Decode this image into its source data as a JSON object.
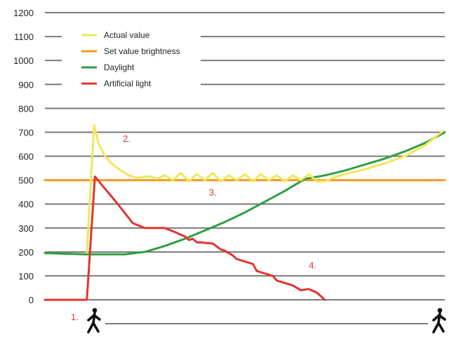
{
  "chart_data": {
    "type": "line",
    "ylim": [
      0,
      1200
    ],
    "y_ticks": [
      0,
      100,
      200,
      300,
      400,
      500,
      600,
      700,
      800,
      900,
      1000,
      1100,
      1200
    ],
    "y_tick_labels": [
      "0",
      "100",
      "200",
      "300",
      "400",
      "500",
      "600",
      "700",
      "800",
      "900",
      "1000",
      "1100",
      "1200"
    ],
    "xlim": [
      0,
      100
    ],
    "grid": true,
    "legend_position": "top-left",
    "series": [
      {
        "name": "Actual value",
        "color": "#f2e65a",
        "x": [
          10.5,
          12.3,
          13.5,
          15,
          17,
          19,
          21,
          23,
          25,
          26.5,
          28,
          30,
          32,
          34,
          36,
          38,
          40,
          42,
          44,
          46,
          48,
          50,
          52,
          54,
          56,
          58,
          60,
          62,
          64,
          66,
          68,
          70,
          72,
          75,
          80,
          85,
          90,
          95,
          99.5
        ],
        "y": [
          200,
          730,
          650,
          600,
          565,
          540,
          520,
          510,
          515,
          515,
          505,
          520,
          500,
          530,
          495,
          525,
          500,
          530,
          495,
          520,
          500,
          525,
          495,
          525,
          500,
          520,
          495,
          520,
          500,
          525,
          495,
          495,
          510,
          525,
          545,
          570,
          600,
          645,
          705
        ]
      },
      {
        "name": "Set value brightness",
        "color": "#f39c1f",
        "x": [
          0,
          100
        ],
        "y": [
          500,
          500
        ]
      },
      {
        "name": "Daylight",
        "color": "#2e9e44",
        "x": [
          0,
          10,
          20,
          25,
          30,
          35,
          40,
          45,
          50,
          55,
          60,
          65,
          70,
          75,
          80,
          85,
          90,
          95,
          100
        ],
        "y": [
          195,
          190,
          190,
          200,
          225,
          255,
          290,
          325,
          365,
          410,
          455,
          505,
          520,
          540,
          565,
          590,
          620,
          655,
          700
        ]
      },
      {
        "name": "Artificial light",
        "color": "#e3342f",
        "x": [
          0,
          10.5,
          12.5,
          14,
          18,
          22,
          25,
          30,
          33,
          33.5,
          35,
          36,
          37,
          38,
          39,
          40,
          42,
          44,
          45,
          47,
          48,
          50,
          52,
          53,
          55,
          57,
          58,
          60,
          62,
          64,
          66,
          68,
          70
        ],
        "y": [
          0,
          0,
          515,
          485,
          405,
          320,
          300,
          300,
          280,
          275,
          265,
          250,
          255,
          240,
          240,
          238,
          235,
          210,
          205,
          185,
          170,
          160,
          150,
          120,
          110,
          100,
          80,
          70,
          60,
          40,
          45,
          30,
          0
        ]
      }
    ],
    "annotations": [
      {
        "label": "1.",
        "x": 6.5,
        "y": -85
      },
      {
        "label": "2.",
        "x": 19.5,
        "y": 660
      },
      {
        "label": "3.",
        "x": 41,
        "y": 435
      },
      {
        "label": "4.",
        "x": 66,
        "y": 130
      }
    ]
  },
  "icons": {
    "left": "person-walking-icon",
    "right": "person-walking-icon"
  }
}
